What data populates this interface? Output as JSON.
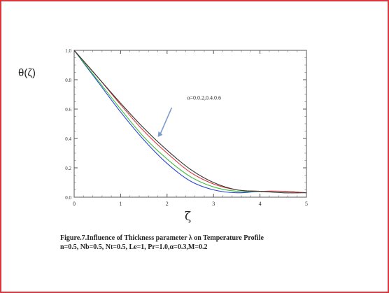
{
  "chart_data": {
    "type": "line",
    "ylabel": "θ(ζ)",
    "xlabel": "ζ",
    "xlim": [
      0,
      5
    ],
    "ylim": [
      0,
      1
    ],
    "x_ticks": [
      "0",
      "1",
      "2",
      "3",
      "4",
      "5"
    ],
    "y_ticks": [
      "0.0",
      "0.2",
      "0.4",
      "0.6",
      "0.8",
      "1.0"
    ],
    "annotation": "α=0.0.2,0.4.0.6",
    "grid": false,
    "series": [
      {
        "color": "#2a44d8",
        "x": [
          0,
          0.5,
          1,
          1.5,
          2,
          2.5,
          3,
          3.5,
          4,
          4.5,
          5
        ],
        "y": [
          1.0,
          0.79,
          0.58,
          0.39,
          0.23,
          0.11,
          0.05,
          0.03,
          0.04,
          0.04,
          0.03
        ]
      },
      {
        "color": "#3fbf3f",
        "x": [
          0,
          0.5,
          1,
          1.5,
          2,
          2.5,
          3,
          3.5,
          4,
          4.5,
          5
        ],
        "y": [
          1.0,
          0.8,
          0.6,
          0.41,
          0.26,
          0.14,
          0.07,
          0.04,
          0.04,
          0.04,
          0.03
        ]
      },
      {
        "color": "#d93a3a",
        "x": [
          0,
          0.5,
          1,
          1.5,
          2,
          2.5,
          3,
          3.5,
          4,
          4.5,
          5
        ],
        "y": [
          1.0,
          0.82,
          0.63,
          0.45,
          0.3,
          0.17,
          0.09,
          0.05,
          0.04,
          0.04,
          0.03
        ]
      },
      {
        "color": "#333333",
        "x": [
          0,
          0.5,
          1,
          1.5,
          2,
          2.5,
          3,
          3.5,
          4,
          4.5,
          5
        ],
        "y": [
          1.0,
          0.82,
          0.64,
          0.47,
          0.32,
          0.19,
          0.1,
          0.05,
          0.04,
          0.03,
          0.03
        ]
      }
    ]
  },
  "caption": {
    "line1": "Figure.7.Influence of  Thickness parameter λ on  Temperature Profile",
    "line2": "n=0.5, Nb=0.5, Nt=0.5, Le=1, Pr=1.0,α=0.3,M=0.2"
  }
}
